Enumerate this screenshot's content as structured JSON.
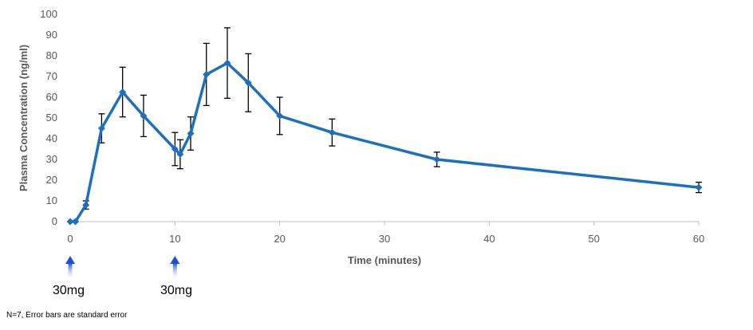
{
  "chart_data": {
    "type": "line",
    "xlabel": "Time (minutes)",
    "ylabel": "Plasma Concentration (ng/ml)",
    "xlim": [
      0,
      60
    ],
    "ylim": [
      0,
      100
    ],
    "x_ticks": [
      0,
      10,
      20,
      30,
      40,
      50,
      60
    ],
    "y_ticks": [
      0,
      10,
      20,
      30,
      40,
      50,
      60,
      70,
      80,
      90,
      100
    ],
    "grid": false,
    "line_color": "#1f6fbf",
    "error_bar_color": "#000000",
    "series": [
      {
        "x": [
          0,
          0.5,
          1.5,
          3,
          5,
          7,
          10,
          10.5,
          11.5,
          13,
          15,
          17,
          20,
          25,
          35,
          60
        ],
        "y": [
          0,
          0,
          8,
          45,
          62.5,
          51,
          35,
          32.5,
          42.5,
          71,
          76.5,
          67,
          51,
          43,
          30,
          16.5
        ],
        "err": [
          0,
          0,
          2,
          7,
          12,
          10,
          8,
          7,
          8,
          15,
          17,
          14,
          9,
          6.5,
          3.5,
          2.5
        ]
      }
    ]
  },
  "annotations": {
    "dose_1": "30mg",
    "dose_2": "30mg",
    "dose_times": [
      0,
      10
    ],
    "footnote": "N=7, Error bars are standard error",
    "arrow_color": "#1a4fd6"
  }
}
